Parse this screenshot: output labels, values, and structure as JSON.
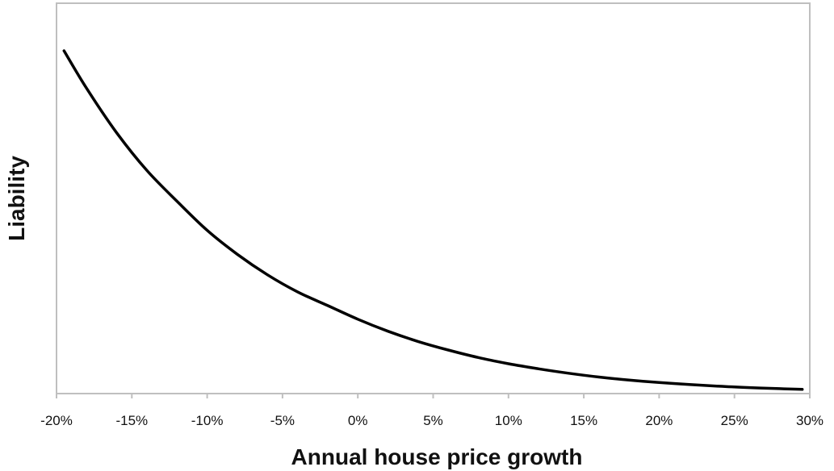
{
  "chart_data": {
    "type": "line",
    "title": "",
    "xlabel": "Annual house price growth",
    "ylabel": "Liability",
    "x_tick_labels": [
      "-20%",
      "-15%",
      "-10%",
      "-5%",
      "0%",
      "5%",
      "10%",
      "15%",
      "20%",
      "25%",
      "30%"
    ],
    "x_ticks": [
      -20,
      -15,
      -10,
      -5,
      0,
      5,
      10,
      15,
      20,
      25,
      30
    ],
    "xlim": [
      -20,
      30
    ],
    "ylim": [
      0,
      100
    ],
    "y_tick_labels_shown": false,
    "grid": false,
    "legend": "none",
    "series": [
      {
        "x": [
          -19.5,
          -18,
          -16,
          -14,
          -12,
          -10,
          -8,
          -6,
          -4,
          -2,
          0,
          2,
          4,
          6,
          8,
          10,
          12,
          14,
          16,
          18,
          20,
          22,
          24,
          26,
          28,
          29.5
        ],
        "values": [
          100,
          89,
          76,
          65,
          56,
          47.5,
          40.5,
          34.5,
          29.5,
          25.5,
          21.5,
          18,
          15,
          12.5,
          10.3,
          8.5,
          7,
          5.7,
          4.6,
          3.7,
          3,
          2.4,
          1.9,
          1.5,
          1.2,
          1
        ]
      }
    ],
    "colors": {
      "line": "#000000",
      "frame": "#bfbfbf"
    }
  }
}
